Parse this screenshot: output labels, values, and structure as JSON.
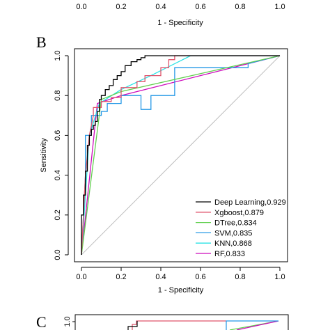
{
  "top_fragment": {
    "x_ticks": [
      "0.0",
      "0.2",
      "0.4",
      "0.6",
      "0.8",
      "1.0"
    ],
    "xlabel": "1 - Specificity"
  },
  "bottom_fragment": {
    "panel_letter": "C",
    "y_tick": "1.0"
  },
  "chart_data": [
    {
      "type": "line",
      "panel_letter": "B",
      "xlabel": "1 - Specificity",
      "ylabel": "Sensitivity",
      "xlim": [
        0,
        1
      ],
      "ylim": [
        0,
        1
      ],
      "x_ticks": [
        "0.0",
        "0.2",
        "0.4",
        "0.6",
        "0.8",
        "1.0"
      ],
      "y_ticks": [
        "0.0",
        "0.2",
        "0.4",
        "0.6",
        "0.8",
        "1.0"
      ],
      "legend_position": "bottom-right",
      "grid": false,
      "reference_line": true,
      "series": [
        {
          "name": "Deep Learning,0.929",
          "color": "#000000",
          "x": [
            0,
            0,
            0.01,
            0.01,
            0.02,
            0.02,
            0.03,
            0.03,
            0.04,
            0.04,
            0.05,
            0.05,
            0.06,
            0.06,
            0.07,
            0.07,
            0.08,
            0.08,
            0.09,
            0.09,
            0.1,
            0.1,
            0.12,
            0.12,
            0.14,
            0.14,
            0.16,
            0.16,
            0.18,
            0.18,
            0.2,
            0.2,
            0.22,
            0.22,
            0.25,
            0.25,
            0.28,
            0.28,
            0.3,
            0.3,
            0.32,
            0.32,
            0.35,
            0.35,
            0.45,
            0.45,
            0.45,
            1
          ],
          "y": [
            0,
            0.2,
            0.2,
            0.3,
            0.3,
            0.42,
            0.42,
            0.55,
            0.55,
            0.6,
            0.6,
            0.63,
            0.63,
            0.65,
            0.65,
            0.67,
            0.67,
            0.72,
            0.72,
            0.78,
            0.78,
            0.8,
            0.8,
            0.83,
            0.83,
            0.85,
            0.85,
            0.88,
            0.88,
            0.9,
            0.9,
            0.92,
            0.92,
            0.95,
            0.95,
            0.97,
            0.97,
            0.98,
            0.98,
            0.99,
            0.99,
            1,
            1,
            1,
            1,
            1,
            1,
            1
          ]
        },
        {
          "name": "Xgboost,0.879",
          "color": "#df536b",
          "x": [
            0,
            0.02,
            0.04,
            0.06,
            0.06,
            0.1,
            0.1,
            0.15,
            0.15,
            0.2,
            0.2,
            0.28,
            0.28,
            0.32,
            0.32,
            0.4,
            0.4,
            0.44,
            0.44,
            0.47,
            0.47,
            0.56,
            0.56,
            1
          ],
          "y": [
            0,
            0.4,
            0.6,
            0.7,
            0.74,
            0.74,
            0.77,
            0.77,
            0.79,
            0.79,
            0.84,
            0.84,
            0.87,
            0.87,
            0.9,
            0.9,
            0.94,
            0.94,
            0.98,
            0.98,
            1,
            1,
            1,
            1
          ]
        },
        {
          "name": "DTree,0.834",
          "color": "#61d04f",
          "x": [
            0,
            0.1,
            0.2,
            1
          ],
          "y": [
            0,
            0.78,
            0.82,
            1
          ]
        },
        {
          "name": "SVM,0.835",
          "color": "#2297e6",
          "x": [
            0,
            0.02,
            0.02,
            0.05,
            0.05,
            0.1,
            0.1,
            0.13,
            0.13,
            0.2,
            0.2,
            0.24,
            0.24,
            0.3,
            0.3,
            0.35,
            0.35,
            0.47,
            0.47,
            0.84,
            0.84,
            1
          ],
          "y": [
            0,
            0.4,
            0.6,
            0.6,
            0.7,
            0.7,
            0.72,
            0.72,
            0.76,
            0.76,
            0.8,
            0.8,
            0.8,
            0.8,
            0.73,
            0.73,
            0.8,
            0.8,
            0.94,
            0.94,
            0.96,
            1
          ]
        },
        {
          "name": "KNN,0.868",
          "color": "#28e2e5",
          "x": [
            0,
            0.04,
            0.09,
            0.2,
            0.35,
            0.55,
            1
          ],
          "y": [
            0,
            0.6,
            0.76,
            0.83,
            0.9,
            1,
            1
          ]
        },
        {
          "name": "RF,0.833",
          "color": "#cd0bbc",
          "x": [
            0,
            0.08,
            0.2,
            1
          ],
          "y": [
            0,
            0.76,
            0.8,
            1
          ]
        }
      ]
    }
  ]
}
